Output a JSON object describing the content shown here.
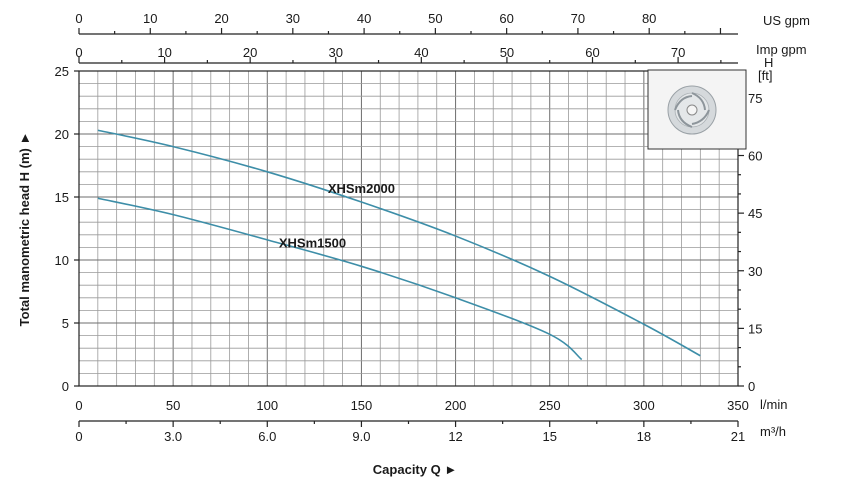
{
  "chart_data": {
    "type": "line",
    "title": "",
    "xlabel": "Capacity Q ►",
    "ylabel": "Total manometric head H (m) ►",
    "xlim": [
      0,
      350
    ],
    "ylim": [
      0,
      25
    ],
    "x_ticks": [
      "0",
      "50",
      "100",
      "150",
      "200",
      "250",
      "300",
      "350"
    ],
    "x_unit": "l/min",
    "y_ticks": [
      "0",
      "5",
      "10",
      "15",
      "20",
      "25"
    ],
    "secondary_axes": {
      "m3h": {
        "unit": "m³/h",
        "range": [
          0,
          21
        ],
        "ticks": [
          "0",
          "3.0",
          "6.0",
          "9.0",
          "12",
          "15",
          "18",
          "21"
        ],
        "values": [
          0,
          3,
          6,
          9,
          12,
          15,
          18,
          21
        ]
      },
      "us_gpm": {
        "unit": "US gpm",
        "range": [
          0,
          92.46
        ],
        "ticks": [
          "0",
          "10",
          "20",
          "30",
          "40",
          "50",
          "60",
          "70",
          "80"
        ],
        "values": [
          0,
          10,
          20,
          30,
          40,
          50,
          60,
          70,
          80
        ]
      },
      "imp_gpm": {
        "unit": "Imp gpm",
        "range": [
          0,
          77.0
        ],
        "ticks": [
          "0",
          "10",
          "20",
          "30",
          "40",
          "50",
          "60",
          "70"
        ],
        "values": [
          0,
          10,
          20,
          30,
          40,
          50,
          60,
          70
        ]
      },
      "ft": {
        "unit_top": "H",
        "unit_bottom": "[ft]",
        "range": [
          0,
          82.0
        ],
        "ticks": [
          "0",
          "15",
          "30",
          "45",
          "60",
          "75"
        ],
        "values": [
          0,
          15,
          30,
          45,
          60,
          75
        ]
      }
    },
    "grid": true,
    "series": [
      {
        "name": "XHSm2000",
        "x": [
          10,
          50,
          100,
          150,
          200,
          250,
          300,
          330
        ],
        "y": [
          20.3,
          19.0,
          17.0,
          14.6,
          11.9,
          8.7,
          4.9,
          2.4
        ]
      },
      {
        "name": "XHSm1500",
        "x": [
          10,
          50,
          100,
          150,
          200,
          250,
          267
        ],
        "y": [
          14.9,
          13.6,
          11.6,
          9.5,
          7.0,
          4.1,
          2.1
        ]
      }
    ],
    "colors": {
      "curve": "#3d8ea8",
      "grid": "#7a7a7a"
    }
  }
}
